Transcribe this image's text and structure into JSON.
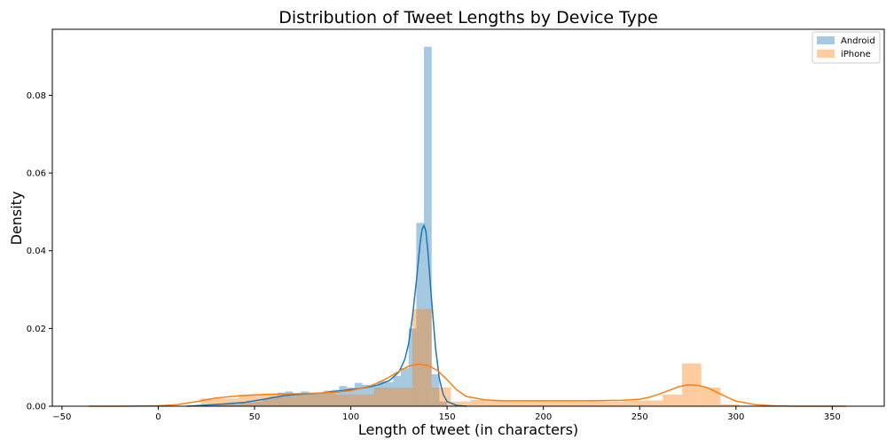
{
  "chart_data": {
    "type": "histogram",
    "title": "Distribution of Tweet Lengths by Device Type",
    "xlabel": "Length of tweet (in characters)",
    "ylabel": "Density",
    "xlim": [
      -55,
      377
    ],
    "ylim": [
      0,
      0.097
    ],
    "xticks": [
      -50,
      0,
      50,
      100,
      150,
      200,
      250,
      300,
      350
    ],
    "yticks": [
      0.0,
      0.02,
      0.04,
      0.06,
      0.08
    ],
    "ytick_labels": [
      "0.00",
      "0.02",
      "0.04",
      "0.06",
      "0.08"
    ],
    "grid": false,
    "legend_position": "top-right",
    "series": [
      {
        "name": "Android",
        "color": "#1f77b4",
        "bar_alpha": 0.4,
        "bins": [
          {
            "x0": 22,
            "x1": 26,
            "y": 0.0003
          },
          {
            "x0": 26,
            "x1": 30,
            "y": 0.0004
          },
          {
            "x0": 30,
            "x1": 34,
            "y": 0.0003
          },
          {
            "x0": 34,
            "x1": 38,
            "y": 0.0005
          },
          {
            "x0": 38,
            "x1": 42,
            "y": 0.0006
          },
          {
            "x0": 42,
            "x1": 46,
            "y": 0.0008
          },
          {
            "x0": 46,
            "x1": 50,
            "y": 0.001
          },
          {
            "x0": 50,
            "x1": 54,
            "y": 0.0012
          },
          {
            "x0": 54,
            "x1": 58,
            "y": 0.0018
          },
          {
            "x0": 58,
            "x1": 62,
            "y": 0.0025
          },
          {
            "x0": 62,
            "x1": 66,
            "y": 0.0035
          },
          {
            "x0": 66,
            "x1": 70,
            "y": 0.0038
          },
          {
            "x0": 70,
            "x1": 74,
            "y": 0.003
          },
          {
            "x0": 74,
            "x1": 78,
            "y": 0.0038
          },
          {
            "x0": 78,
            "x1": 82,
            "y": 0.0035
          },
          {
            "x0": 82,
            "x1": 86,
            "y": 0.0035
          },
          {
            "x0": 86,
            "x1": 90,
            "y": 0.004
          },
          {
            "x0": 90,
            "x1": 94,
            "y": 0.0042
          },
          {
            "x0": 94,
            "x1": 98,
            "y": 0.0052
          },
          {
            "x0": 98,
            "x1": 102,
            "y": 0.0048
          },
          {
            "x0": 102,
            "x1": 106,
            "y": 0.006
          },
          {
            "x0": 106,
            "x1": 110,
            "y": 0.0055
          },
          {
            "x0": 110,
            "x1": 114,
            "y": 0.0052
          },
          {
            "x0": 114,
            "x1": 118,
            "y": 0.0065
          },
          {
            "x0": 118,
            "x1": 122,
            "y": 0.0062
          },
          {
            "x0": 122,
            "x1": 126,
            "y": 0.0078
          },
          {
            "x0": 126,
            "x1": 130,
            "y": 0.0098
          },
          {
            "x0": 130,
            "x1": 134,
            "y": 0.02
          },
          {
            "x0": 134,
            "x1": 138,
            "y": 0.0472
          },
          {
            "x0": 138,
            "x1": 142,
            "y": 0.0925
          },
          {
            "x0": 142,
            "x1": 146,
            "y": 0.0082
          },
          {
            "x0": 146,
            "x1": 150,
            "y": 0.0012
          }
        ],
        "kde": {
          "x": [
            15,
            25,
            35,
            45,
            55,
            65,
            75,
            85,
            95,
            105,
            110,
            115,
            120,
            125,
            128,
            130,
            132,
            134,
            136,
            137,
            138,
            139,
            140,
            142,
            144,
            146,
            148,
            150,
            155,
            160
          ],
          "y": [
            0.0,
            0.0003,
            0.0006,
            0.001,
            0.0018,
            0.0027,
            0.0031,
            0.0034,
            0.004,
            0.0046,
            0.005,
            0.0056,
            0.0066,
            0.0088,
            0.012,
            0.016,
            0.023,
            0.032,
            0.042,
            0.0455,
            0.0465,
            0.045,
            0.04,
            0.027,
            0.015,
            0.007,
            0.003,
            0.0012,
            0.0002,
            0.0
          ]
        }
      },
      {
        "name": "iPhone",
        "color": "#ff7f0e",
        "bar_alpha": 0.4,
        "bins": [
          {
            "x0": 22,
            "x1": 42,
            "y": 0.002
          },
          {
            "x0": 42,
            "x1": 62,
            "y": 0.003
          },
          {
            "x0": 62,
            "x1": 72,
            "y": 0.0025
          },
          {
            "x0": 72,
            "x1": 92,
            "y": 0.0032
          },
          {
            "x0": 92,
            "x1": 112,
            "y": 0.003
          },
          {
            "x0": 112,
            "x1": 132,
            "y": 0.0048
          },
          {
            "x0": 132,
            "x1": 142,
            "y": 0.025
          },
          {
            "x0": 142,
            "x1": 152,
            "y": 0.0048
          },
          {
            "x0": 152,
            "x1": 162,
            "y": 0.0012
          },
          {
            "x0": 162,
            "x1": 172,
            "y": 0.0016
          },
          {
            "x0": 172,
            "x1": 182,
            "y": 0.0014
          },
          {
            "x0": 182,
            "x1": 192,
            "y": 0.0014
          },
          {
            "x0": 192,
            "x1": 202,
            "y": 0.0015
          },
          {
            "x0": 202,
            "x1": 212,
            "y": 0.0014
          },
          {
            "x0": 212,
            "x1": 222,
            "y": 0.0014
          },
          {
            "x0": 222,
            "x1": 232,
            "y": 0.0015
          },
          {
            "x0": 232,
            "x1": 242,
            "y": 0.0012
          },
          {
            "x0": 242,
            "x1": 252,
            "y": 0.0014
          },
          {
            "x0": 252,
            "x1": 262,
            "y": 0.0015
          },
          {
            "x0": 262,
            "x1": 272,
            "y": 0.003
          },
          {
            "x0": 272,
            "x1": 282,
            "y": 0.011
          },
          {
            "x0": 282,
            "x1": 292,
            "y": 0.0048
          },
          {
            "x0": 292,
            "x1": 302,
            "y": 0.0005
          }
        ],
        "kde": {
          "x": [
            -36,
            -20,
            0,
            10,
            20,
            30,
            40,
            50,
            60,
            70,
            80,
            90,
            100,
            110,
            115,
            120,
            125,
            130,
            135,
            140,
            145,
            150,
            155,
            160,
            170,
            180,
            200,
            220,
            240,
            250,
            255,
            260,
            265,
            270,
            275,
            280,
            285,
            290,
            295,
            300,
            310,
            320,
            330,
            340,
            357
          ],
          "y": [
            0.0,
            0.0,
            0.0001,
            0.0004,
            0.0012,
            0.0021,
            0.0026,
            0.0029,
            0.0031,
            0.0032,
            0.0033,
            0.0035,
            0.004,
            0.0052,
            0.0062,
            0.0075,
            0.009,
            0.0103,
            0.0108,
            0.0105,
            0.0092,
            0.0068,
            0.0042,
            0.0025,
            0.0016,
            0.0014,
            0.0014,
            0.0014,
            0.0015,
            0.0018,
            0.0023,
            0.0031,
            0.004,
            0.005,
            0.0055,
            0.0054,
            0.0048,
            0.0036,
            0.0024,
            0.0013,
            0.0004,
            0.0001,
            0.0,
            0.0,
            0.0
          ]
        }
      }
    ]
  }
}
